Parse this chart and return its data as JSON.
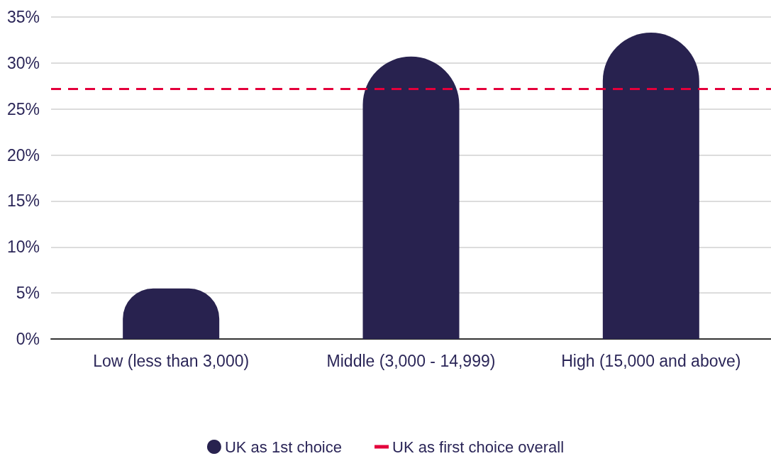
{
  "chart_data": {
    "type": "bar",
    "categories": [
      "Low (less than 3,000)",
      "Middle (3,000 - 14,999)",
      "High (15,000 and above)"
    ],
    "series": [
      {
        "name": "UK as 1st choice",
        "color": "#28224f",
        "values": [
          5.5,
          30.7,
          33.3
        ]
      }
    ],
    "ylim": [
      0,
      35
    ],
    "yticks": [
      {
        "value": 0,
        "label": "0%"
      },
      {
        "value": 5,
        "label": "5%"
      },
      {
        "value": 10,
        "label": "10%"
      },
      {
        "value": 15,
        "label": "15%"
      },
      {
        "value": 20,
        "label": "20%"
      },
      {
        "value": 25,
        "label": "25%"
      },
      {
        "value": 30,
        "label": "30%"
      },
      {
        "value": 35,
        "label": "35%"
      }
    ],
    "ref_lines": [
      {
        "axis": "y",
        "value": 27.2,
        "label": "UK as first choice overall",
        "color": "#e4003b",
        "line_style": "dashed"
      }
    ],
    "grid": "y",
    "legend": "bottom"
  }
}
